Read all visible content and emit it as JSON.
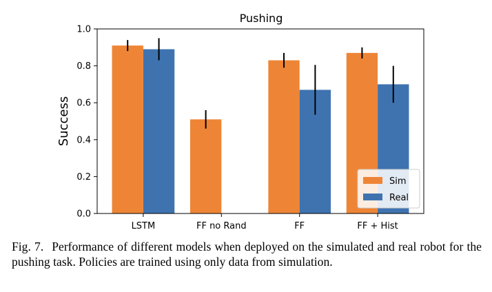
{
  "chart_data": {
    "type": "bar",
    "title": "Pushing",
    "xlabel": "",
    "ylabel": "Success",
    "ylim": [
      0,
      1.0
    ],
    "yticks": [
      "0.0",
      "0.2",
      "0.4",
      "0.6",
      "0.8",
      "1.0"
    ],
    "categories": [
      "LSTM",
      "FF no Rand",
      "FF",
      "FF + Hist"
    ],
    "series": [
      {
        "name": "Sim",
        "color": "#ee8536",
        "values": [
          0.91,
          0.51,
          0.83,
          0.87
        ],
        "err": [
          0.03,
          0.05,
          0.04,
          0.03
        ]
      },
      {
        "name": "Real",
        "color": "#3f73b0",
        "values": [
          0.89,
          0.0,
          0.67,
          0.7
        ],
        "err": [
          0.06,
          0.0,
          0.135,
          0.1
        ]
      }
    ],
    "grid": false,
    "legend": "lower-right"
  },
  "caption": {
    "label": "Fig. 7.",
    "text": "Performance of different models when deployed on the simulated and real robot for the pushing task. Policies are trained using only data from simulation."
  }
}
